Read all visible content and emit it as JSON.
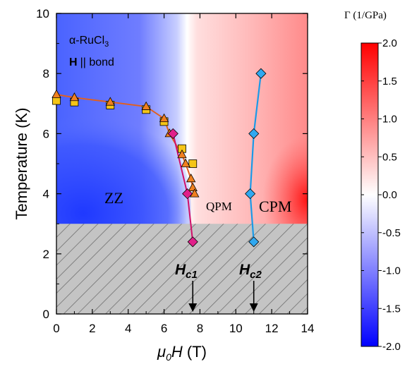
{
  "chart_data": {
    "type": "heatmap",
    "title": "",
    "xlabel": "μ0H (T)",
    "ylabel": "Temperature (K)",
    "xlim": [
      0,
      14
    ],
    "ylim": [
      0,
      10
    ],
    "xticks": [
      0,
      2,
      4,
      6,
      8,
      10,
      12,
      14
    ],
    "yticks": [
      0,
      2,
      4,
      6,
      8,
      10
    ],
    "annotations": {
      "material": "α-RuCl3",
      "field_dir_bold": "H",
      "field_dir_rest": "|| bond",
      "region_zz": "ZZ",
      "region_qpm": "QPM",
      "region_cpm": "CPM",
      "hc1_main": "H",
      "hc1_sub": "c1",
      "hc2_main": "H",
      "hc2_sub": "c2"
    },
    "hatched_region_below_T": 3.0,
    "arrows_at_field": [
      7.6,
      11.0
    ],
    "colorbar": {
      "label": "Γ (1/GPa)",
      "range": [
        -2.0,
        2.0
      ],
      "ticks": [
        "2.0",
        "1.5",
        "1.0",
        "0.5",
        "0.0",
        "-0.5",
        "-1.0",
        "-1.5",
        "-2.0"
      ],
      "colors": [
        "#0000ff",
        "#ffffff",
        "#ff0000"
      ]
    },
    "series": [
      {
        "marker": "square",
        "color": "#f5c518",
        "x": [
          0.0,
          1.0,
          3.0,
          5.0,
          6.0,
          7.0,
          7.6
        ],
        "y": [
          7.1,
          7.05,
          6.95,
          6.8,
          6.4,
          5.5,
          5.0
        ]
      },
      {
        "marker": "triangle",
        "color": "#f08020",
        "x": [
          0.0,
          1.0,
          3.0,
          5.0,
          6.0,
          6.3,
          7.0,
          7.2,
          7.5,
          7.6,
          7.7
        ],
        "y": [
          7.3,
          7.2,
          7.05,
          6.9,
          6.5,
          6.0,
          5.3,
          5.0,
          4.5,
          4.2,
          4.0
        ]
      },
      {
        "marker": "diamond",
        "color": "#e0208a",
        "x": [
          6.5,
          7.3,
          7.6
        ],
        "y": [
          6.0,
          4.0,
          2.4
        ]
      },
      {
        "marker": "diamond",
        "color": "#30a8f0",
        "x": [
          11.4,
          11.0,
          10.8,
          11.0
        ],
        "y": [
          8.0,
          6.0,
          4.0,
          2.4
        ]
      }
    ]
  }
}
